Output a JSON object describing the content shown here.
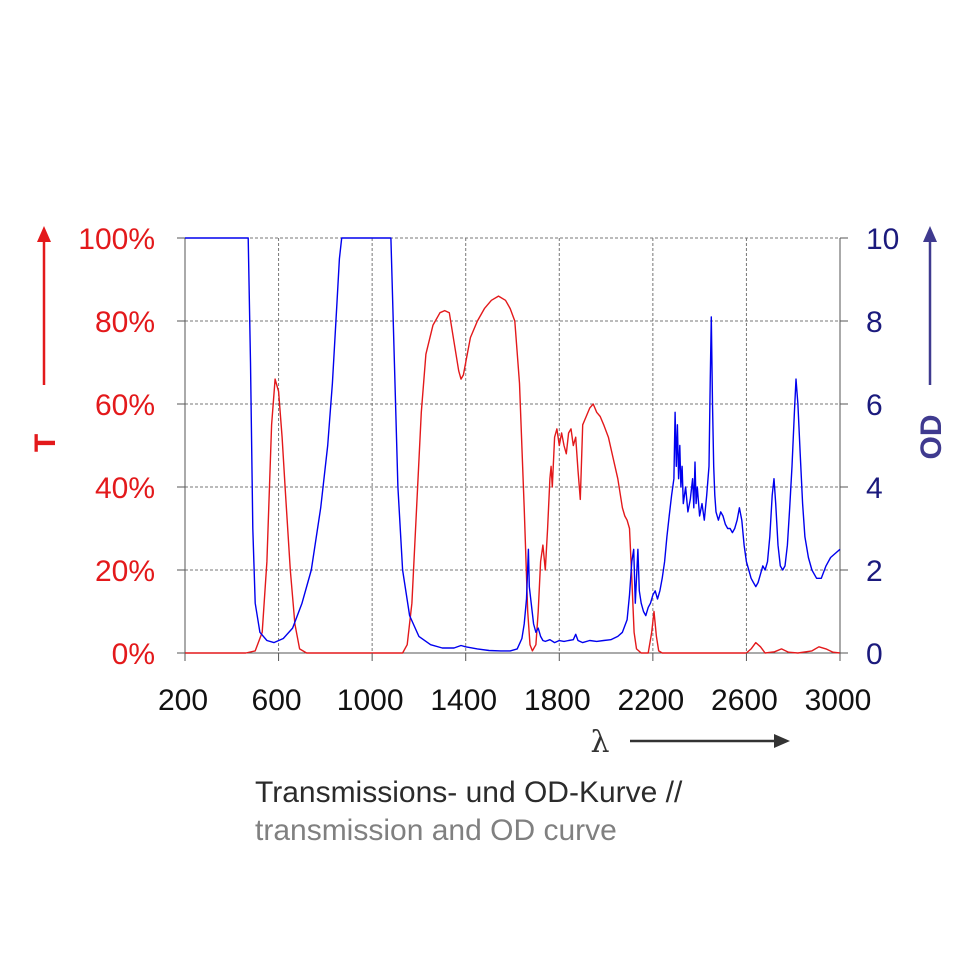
{
  "chart_data": {
    "type": "line",
    "xlabel": "λ",
    "ylabel_left": "T",
    "ylabel_right": "OD",
    "xlim": [
      200,
      3000
    ],
    "ylim_left": [
      0,
      100
    ],
    "ylim_right": [
      0,
      10
    ],
    "x_ticks": [
      "200",
      "600",
      "1000",
      "1400",
      "1800",
      "2200",
      "2600",
      "3000"
    ],
    "y_ticks_left": [
      "0%",
      "20%",
      "40%",
      "60%",
      "80%",
      "100%"
    ],
    "y_ticks_right": [
      "0",
      "2",
      "4",
      "6",
      "8",
      "10"
    ],
    "grid": true,
    "caption_de": "Transmissions- und OD-Kurve //",
    "caption_en": "transmission and OD curve",
    "colors": {
      "T": "#e3191b",
      "OD": "#0000ee",
      "left_axis": "#e3191b",
      "right_axis": "#1b1a7d"
    },
    "series": [
      {
        "axis": "left",
        "points": [
          [
            200,
            0
          ],
          [
            460,
            0
          ],
          [
            500,
            0.5
          ],
          [
            530,
            5
          ],
          [
            550,
            22
          ],
          [
            570,
            55
          ],
          [
            585,
            66
          ],
          [
            600,
            63
          ],
          [
            615,
            52
          ],
          [
            630,
            38
          ],
          [
            650,
            20
          ],
          [
            670,
            7
          ],
          [
            690,
            1
          ],
          [
            720,
            0
          ],
          [
            1130,
            0
          ],
          [
            1150,
            2
          ],
          [
            1170,
            12
          ],
          [
            1190,
            35
          ],
          [
            1210,
            58
          ],
          [
            1230,
            72
          ],
          [
            1260,
            79
          ],
          [
            1290,
            82
          ],
          [
            1310,
            82.5
          ],
          [
            1330,
            82
          ],
          [
            1350,
            75
          ],
          [
            1370,
            68
          ],
          [
            1380,
            66
          ],
          [
            1390,
            67
          ],
          [
            1400,
            70
          ],
          [
            1420,
            76
          ],
          [
            1450,
            80
          ],
          [
            1480,
            83
          ],
          [
            1510,
            85
          ],
          [
            1540,
            86
          ],
          [
            1570,
            85
          ],
          [
            1590,
            83
          ],
          [
            1610,
            80
          ],
          [
            1630,
            65
          ],
          [
            1650,
            35
          ],
          [
            1665,
            10
          ],
          [
            1675,
            2
          ],
          [
            1685,
            0.5
          ],
          [
            1700,
            2
          ],
          [
            1710,
            10
          ],
          [
            1720,
            22
          ],
          [
            1730,
            26
          ],
          [
            1740,
            20
          ],
          [
            1750,
            30
          ],
          [
            1760,
            42
          ],
          [
            1765,
            45
          ],
          [
            1770,
            40
          ],
          [
            1780,
            52
          ],
          [
            1790,
            54
          ],
          [
            1800,
            50
          ],
          [
            1810,
            53
          ],
          [
            1820,
            50
          ],
          [
            1830,
            48
          ],
          [
            1840,
            53
          ],
          [
            1850,
            54
          ],
          [
            1860,
            50
          ],
          [
            1870,
            52
          ],
          [
            1880,
            44
          ],
          [
            1890,
            37
          ],
          [
            1900,
            55
          ],
          [
            1915,
            57
          ],
          [
            1930,
            59
          ],
          [
            1945,
            60
          ],
          [
            1960,
            58
          ],
          [
            1975,
            57
          ],
          [
            1990,
            55
          ],
          [
            2010,
            52
          ],
          [
            2030,
            47
          ],
          [
            2050,
            42
          ],
          [
            2070,
            35
          ],
          [
            2080,
            33
          ],
          [
            2090,
            32
          ],
          [
            2100,
            30
          ],
          [
            2110,
            18
          ],
          [
            2120,
            5
          ],
          [
            2130,
            1
          ],
          [
            2150,
            0
          ],
          [
            2180,
            0
          ],
          [
            2195,
            5
          ],
          [
            2205,
            10
          ],
          [
            2215,
            4
          ],
          [
            2225,
            0.5
          ],
          [
            2240,
            0
          ],
          [
            2600,
            0
          ],
          [
            2620,
            1
          ],
          [
            2640,
            2.5
          ],
          [
            2660,
            1.5
          ],
          [
            2680,
            0
          ],
          [
            2720,
            0.3
          ],
          [
            2750,
            1
          ],
          [
            2780,
            0.2
          ],
          [
            2820,
            0
          ],
          [
            2880,
            0.5
          ],
          [
            2910,
            1.5
          ],
          [
            2940,
            1
          ],
          [
            2970,
            0.2
          ],
          [
            3000,
            0
          ]
        ]
      },
      {
        "axis": "right",
        "points": [
          [
            200,
            10
          ],
          [
            470,
            10
          ],
          [
            480,
            7
          ],
          [
            490,
            3
          ],
          [
            500,
            1.2
          ],
          [
            520,
            0.5
          ],
          [
            550,
            0.3
          ],
          [
            580,
            0.25
          ],
          [
            620,
            0.35
          ],
          [
            660,
            0.6
          ],
          [
            700,
            1.2
          ],
          [
            740,
            2
          ],
          [
            780,
            3.5
          ],
          [
            810,
            5
          ],
          [
            830,
            6.5
          ],
          [
            850,
            8.5
          ],
          [
            860,
            9.5
          ],
          [
            870,
            10
          ],
          [
            1080,
            10
          ],
          [
            1095,
            7
          ],
          [
            1110,
            4
          ],
          [
            1130,
            2
          ],
          [
            1160,
            0.9
          ],
          [
            1200,
            0.4
          ],
          [
            1250,
            0.2
          ],
          [
            1300,
            0.12
          ],
          [
            1350,
            0.12
          ],
          [
            1380,
            0.18
          ],
          [
            1400,
            0.15
          ],
          [
            1450,
            0.1
          ],
          [
            1500,
            0.06
          ],
          [
            1550,
            0.05
          ],
          [
            1590,
            0.05
          ],
          [
            1620,
            0.1
          ],
          [
            1640,
            0.35
          ],
          [
            1650,
            0.7
          ],
          [
            1660,
            1.3
          ],
          [
            1668,
            2.5
          ],
          [
            1672,
            1.6
          ],
          [
            1680,
            1.2
          ],
          [
            1690,
            0.7
          ],
          [
            1700,
            0.5
          ],
          [
            1710,
            0.6
          ],
          [
            1720,
            0.4
          ],
          [
            1730,
            0.3
          ],
          [
            1740,
            0.28
          ],
          [
            1760,
            0.32
          ],
          [
            1780,
            0.25
          ],
          [
            1800,
            0.3
          ],
          [
            1820,
            0.28
          ],
          [
            1840,
            0.3
          ],
          [
            1860,
            0.32
          ],
          [
            1870,
            0.45
          ],
          [
            1880,
            0.3
          ],
          [
            1900,
            0.25
          ],
          [
            1930,
            0.3
          ],
          [
            1960,
            0.28
          ],
          [
            1990,
            0.3
          ],
          [
            2020,
            0.32
          ],
          [
            2050,
            0.4
          ],
          [
            2070,
            0.5
          ],
          [
            2090,
            0.8
          ],
          [
            2100,
            1.4
          ],
          [
            2110,
            2.2
          ],
          [
            2118,
            2.5
          ],
          [
            2125,
            1.2
          ],
          [
            2130,
            1.8
          ],
          [
            2136,
            2.5
          ],
          [
            2142,
            1.5
          ],
          [
            2150,
            1.2
          ],
          [
            2160,
            1.0
          ],
          [
            2170,
            0.9
          ],
          [
            2180,
            1.1
          ],
          [
            2190,
            1.2
          ],
          [
            2200,
            1.4
          ],
          [
            2210,
            1.5
          ],
          [
            2220,
            1.3
          ],
          [
            2230,
            1.5
          ],
          [
            2240,
            1.8
          ],
          [
            2250,
            2.2
          ],
          [
            2260,
            2.8
          ],
          [
            2270,
            3.3
          ],
          [
            2280,
            3.8
          ],
          [
            2290,
            4.2
          ],
          [
            2295,
            5.8
          ],
          [
            2300,
            4.5
          ],
          [
            2305,
            5.5
          ],
          [
            2310,
            4.2
          ],
          [
            2315,
            5.0
          ],
          [
            2320,
            4.0
          ],
          [
            2325,
            4.5
          ],
          [
            2330,
            3.6
          ],
          [
            2340,
            4.0
          ],
          [
            2350,
            3.4
          ],
          [
            2360,
            3.7
          ],
          [
            2370,
            4.2
          ],
          [
            2375,
            3.5
          ],
          [
            2380,
            4.6
          ],
          [
            2385,
            3.6
          ],
          [
            2390,
            4.0
          ],
          [
            2400,
            3.3
          ],
          [
            2410,
            3.6
          ],
          [
            2420,
            3.2
          ],
          [
            2430,
            3.8
          ],
          [
            2440,
            4.5
          ],
          [
            2445,
            6.5
          ],
          [
            2450,
            8.1
          ],
          [
            2455,
            6.0
          ],
          [
            2460,
            4.5
          ],
          [
            2465,
            3.8
          ],
          [
            2470,
            3.4
          ],
          [
            2480,
            3.2
          ],
          [
            2490,
            3.4
          ],
          [
            2500,
            3.3
          ],
          [
            2510,
            3.1
          ],
          [
            2520,
            3.0
          ],
          [
            2530,
            3.0
          ],
          [
            2540,
            2.9
          ],
          [
            2550,
            3.0
          ],
          [
            2560,
            3.2
          ],
          [
            2570,
            3.5
          ],
          [
            2580,
            3.2
          ],
          [
            2590,
            2.6
          ],
          [
            2600,
            2.2
          ],
          [
            2610,
            2.0
          ],
          [
            2620,
            1.8
          ],
          [
            2630,
            1.7
          ],
          [
            2640,
            1.6
          ],
          [
            2650,
            1.7
          ],
          [
            2660,
            1.9
          ],
          [
            2670,
            2.1
          ],
          [
            2680,
            2.0
          ],
          [
            2690,
            2.2
          ],
          [
            2700,
            2.8
          ],
          [
            2710,
            3.8
          ],
          [
            2718,
            4.2
          ],
          [
            2725,
            3.6
          ],
          [
            2735,
            2.6
          ],
          [
            2745,
            2.1
          ],
          [
            2755,
            2.0
          ],
          [
            2765,
            2.1
          ],
          [
            2775,
            2.6
          ],
          [
            2785,
            3.5
          ],
          [
            2795,
            4.5
          ],
          [
            2805,
            5.8
          ],
          [
            2812,
            6.6
          ],
          [
            2820,
            6.0
          ],
          [
            2830,
            4.8
          ],
          [
            2840,
            3.6
          ],
          [
            2850,
            2.8
          ],
          [
            2865,
            2.3
          ],
          [
            2880,
            2.0
          ],
          [
            2900,
            1.8
          ],
          [
            2920,
            1.8
          ],
          [
            2940,
            2.1
          ],
          [
            2960,
            2.3
          ],
          [
            2980,
            2.4
          ],
          [
            3000,
            2.5
          ]
        ]
      }
    ]
  }
}
